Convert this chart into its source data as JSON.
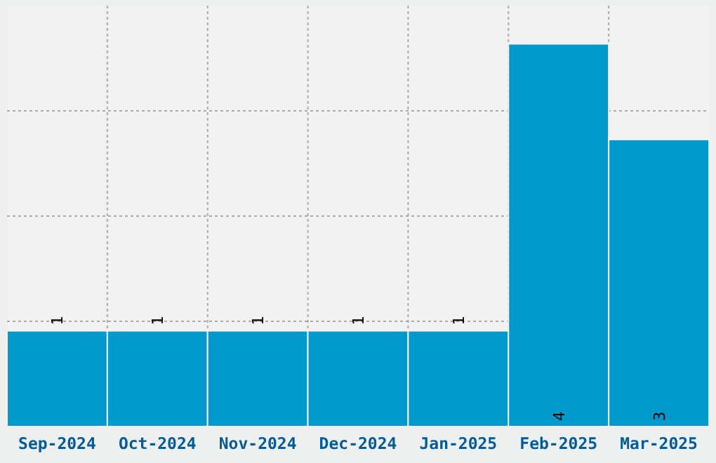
{
  "chart_data": {
    "type": "bar",
    "categories": [
      "Sep-2024",
      "Oct-2024",
      "Nov-2024",
      "Dec-2024",
      "Jan-2025",
      "Feb-2025",
      "Mar-2025"
    ],
    "values": [
      1,
      1,
      1,
      1,
      1,
      4,
      3
    ],
    "color": "#0099cc",
    "ylim": [
      0,
      4.4
    ],
    "yticks": [
      {
        "value": 1.1,
        "label": null
      },
      {
        "value": 2.2,
        "label": null
      },
      {
        "value": 3.3,
        "label": null
      }
    ],
    "tick_labels": "x",
    "grid": true,
    "data_labels": true
  }
}
